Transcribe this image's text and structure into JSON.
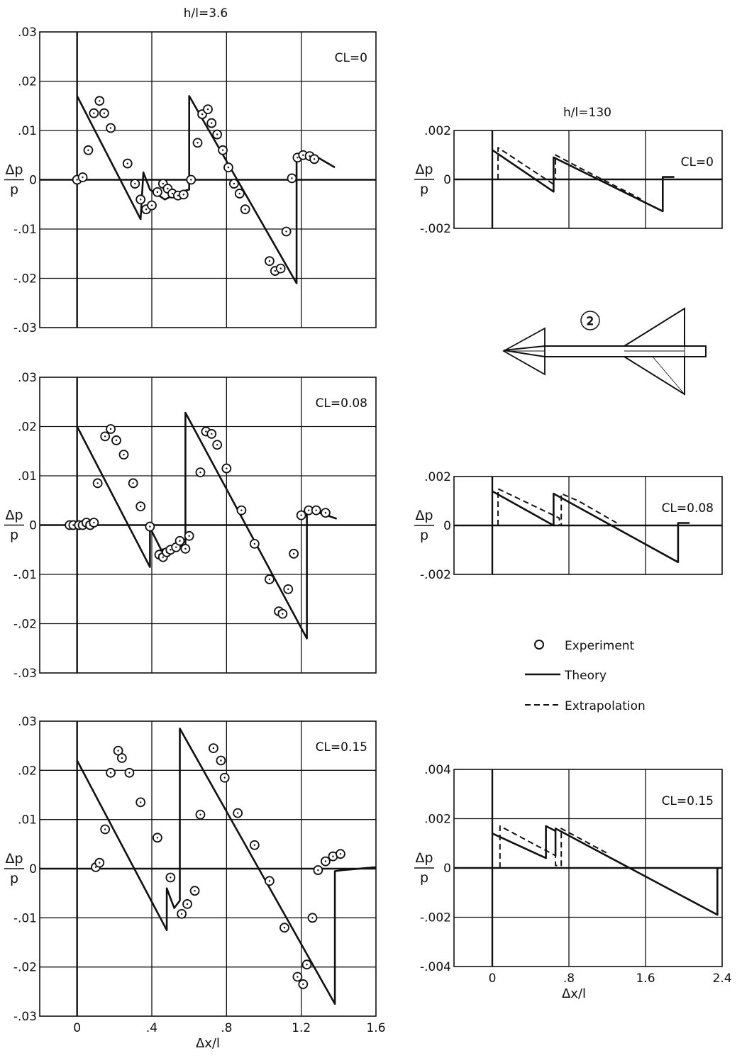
{
  "header_left": "h/l=3.6",
  "header_right": "h/l=130",
  "y_axis_label_top": "Δp",
  "y_axis_label_bottom": "p",
  "x_axis_label": "Δx/l",
  "legend": {
    "experiment": "Experiment",
    "theory": "Theory",
    "extrapolation": "Extrapolation"
  },
  "config_marker": "2",
  "colors": {
    "ink": "#111111",
    "background": "#ffffff"
  },
  "chart_data": [
    {
      "type": "line",
      "panel": "left-top",
      "label": "CL=0",
      "xlim": [
        -0.2,
        1.6
      ],
      "ylim": [
        -0.03,
        0.03
      ],
      "xticks": [
        0,
        0.4,
        0.8,
        1.2,
        1.6
      ],
      "xtick_labels": [],
      "yticks": [
        0.03,
        0.02,
        0.01,
        0,
        -0.01,
        -0.02,
        -0.03
      ],
      "ytick_labels": [
        ".03",
        ".02",
        ".01",
        "0",
        "-.01",
        "-.02",
        "-.03"
      ],
      "series": [
        {
          "kind": "theory",
          "points": [
            [
              0,
              0.017
            ],
            [
              0.34,
              -0.008
            ],
            [
              0.355,
              0.0015
            ],
            [
              0.39,
              -0.002
            ],
            [
              0.47,
              -0.004
            ],
            [
              0.55,
              -0.0025
            ],
            [
              0.6,
              -0.002
            ],
            [
              0.6,
              0.017
            ],
            [
              1.175,
              -0.021
            ],
            [
              1.175,
              0.0045
            ],
            [
              1.23,
              0.005
            ],
            [
              1.29,
              0.0045
            ],
            [
              1.38,
              0.0025
            ]
          ]
        },
        {
          "kind": "experiment",
          "points": [
            [
              0,
              0
            ],
            [
              0.03,
              0.0005
            ],
            [
              0.06,
              0.006
            ],
            [
              0.09,
              0.0135
            ],
            [
              0.12,
              0.016
            ],
            [
              0.145,
              0.0135
            ],
            [
              0.18,
              0.0105
            ],
            [
              0.27,
              0.0033
            ],
            [
              0.31,
              -0.0008
            ],
            [
              0.34,
              -0.004
            ],
            [
              0.37,
              -0.006
            ],
            [
              0.4,
              -0.0052
            ],
            [
              0.43,
              -0.0025
            ],
            [
              0.46,
              -0.0008
            ],
            [
              0.485,
              -0.0018
            ],
            [
              0.51,
              -0.0028
            ],
            [
              0.54,
              -0.0032
            ],
            [
              0.57,
              -0.003
            ],
            [
              0.61,
              0
            ],
            [
              0.645,
              0.0075
            ],
            [
              0.67,
              0.0133
            ],
            [
              0.7,
              0.0143
            ],
            [
              0.72,
              0.0115
            ],
            [
              0.75,
              0.0092
            ],
            [
              0.78,
              0.006
            ],
            [
              0.81,
              0.0025
            ],
            [
              0.84,
              -0.0008
            ],
            [
              0.87,
              -0.0028
            ],
            [
              0.9,
              -0.006
            ],
            [
              1.03,
              -0.0165
            ],
            [
              1.06,
              -0.0185
            ],
            [
              1.09,
              -0.018
            ],
            [
              1.12,
              -0.0105
            ],
            [
              1.15,
              0.0003
            ],
            [
              1.18,
              0.0045
            ],
            [
              1.21,
              0.005
            ],
            [
              1.245,
              0.0048
            ],
            [
              1.27,
              0.0042
            ]
          ]
        }
      ]
    },
    {
      "type": "line",
      "panel": "left-middle",
      "label": "CL=0.08",
      "xlim": [
        -0.2,
        1.6
      ],
      "ylim": [
        -0.03,
        0.03
      ],
      "xticks": [
        0,
        0.4,
        0.8,
        1.2,
        1.6
      ],
      "xtick_labels": [],
      "yticks": [
        0.03,
        0.02,
        0.01,
        0,
        -0.01,
        -0.02,
        -0.03
      ],
      "ytick_labels": [
        ".03",
        ".02",
        ".01",
        "0",
        "-.01",
        "-.02",
        "-.03"
      ],
      "series": [
        {
          "kind": "theory",
          "points": [
            [
              0,
              0.02
            ],
            [
              0.39,
              -0.0085
            ],
            [
              0.39,
              -0.0005
            ],
            [
              0.45,
              -0.005
            ],
            [
              0.52,
              -0.0045
            ],
            [
              0.58,
              -0.004
            ],
            [
              0.58,
              0.0228
            ],
            [
              1.23,
              -0.023
            ],
            [
              1.23,
              0.0027
            ],
            [
              1.27,
              0.0028
            ],
            [
              1.32,
              0.0022
            ],
            [
              1.39,
              0.0013
            ]
          ]
        },
        {
          "kind": "experiment",
          "points": [
            [
              -0.04,
              0
            ],
            [
              -0.02,
              0
            ],
            [
              0.01,
              0
            ],
            [
              0.03,
              0
            ],
            [
              0.05,
              0.0005
            ],
            [
              0.07,
              0
            ],
            [
              0.09,
              0.0005
            ],
            [
              0.11,
              0.0085
            ],
            [
              0.15,
              0.018
            ],
            [
              0.18,
              0.0195
            ],
            [
              0.21,
              0.0172
            ],
            [
              0.25,
              0.0143
            ],
            [
              0.3,
              0.0085
            ],
            [
              0.34,
              0.0038
            ],
            [
              0.39,
              -0.0003
            ],
            [
              0.44,
              -0.006
            ],
            [
              0.46,
              -0.0065
            ],
            [
              0.48,
              -0.0055
            ],
            [
              0.5,
              -0.005
            ],
            [
              0.53,
              -0.0045
            ],
            [
              0.55,
              -0.0032
            ],
            [
              0.58,
              -0.0048
            ],
            [
              0.6,
              -0.0022
            ],
            [
              0.66,
              0.0107
            ],
            [
              0.69,
              0.019
            ],
            [
              0.72,
              0.0185
            ],
            [
              0.75,
              0.0163
            ],
            [
              0.8,
              0.0115
            ],
            [
              0.88,
              0.003
            ],
            [
              0.95,
              -0.0038
            ],
            [
              1.03,
              -0.011
            ],
            [
              1.08,
              -0.0175
            ],
            [
              1.1,
              -0.018
            ],
            [
              1.13,
              -0.013
            ],
            [
              1.16,
              -0.0058
            ],
            [
              1.2,
              0.002
            ],
            [
              1.24,
              0.003
            ],
            [
              1.28,
              0.003
            ],
            [
              1.33,
              0.0025
            ]
          ]
        }
      ]
    },
    {
      "type": "line",
      "panel": "left-bottom",
      "label": "CL=0.15",
      "xlim": [
        -0.2,
        1.6
      ],
      "ylim": [
        -0.03,
        0.03
      ],
      "xticks": [
        0,
        0.4,
        0.8,
        1.2,
        1.6
      ],
      "xtick_labels": [
        "0",
        ".4",
        ".8",
        "1.2",
        "1.6"
      ],
      "yticks": [
        0.03,
        0.02,
        0.01,
        0,
        -0.01,
        -0.02,
        -0.03
      ],
      "ytick_labels": [
        ".03",
        ".02",
        ".01",
        "0",
        "-.01",
        "-.02",
        "-.03"
      ],
      "series": [
        {
          "kind": "theory",
          "points": [
            [
              0,
              0.022
            ],
            [
              0.48,
              -0.0125
            ],
            [
              0.48,
              -0.004
            ],
            [
              0.52,
              -0.008
            ],
            [
              0.55,
              -0.0065
            ],
            [
              0.55,
              0.0285
            ],
            [
              1.38,
              -0.0275
            ],
            [
              1.38,
              -0.0005
            ],
            [
              1.42,
              -0.0003
            ],
            [
              1.6,
              0.0003
            ]
          ]
        },
        {
          "kind": "experiment",
          "points": [
            [
              0.1,
              0.0003
            ],
            [
              0.12,
              0.0012
            ],
            [
              0.15,
              0.008
            ],
            [
              0.18,
              0.0195
            ],
            [
              0.22,
              0.024
            ],
            [
              0.24,
              0.0225
            ],
            [
              0.28,
              0.0195
            ],
            [
              0.34,
              0.0135
            ],
            [
              0.43,
              0.0063
            ],
            [
              0.5,
              -0.0018
            ],
            [
              0.56,
              -0.0092
            ],
            [
              0.59,
              -0.0072
            ],
            [
              0.63,
              -0.0045
            ],
            [
              0.66,
              0.011
            ],
            [
              0.73,
              0.0245
            ],
            [
              0.77,
              0.022
            ],
            [
              0.79,
              0.0185
            ],
            [
              0.86,
              0.0113
            ],
            [
              0.95,
              0.0048
            ],
            [
              1.03,
              -0.0025
            ],
            [
              1.11,
              -0.012
            ],
            [
              1.18,
              -0.022
            ],
            [
              1.21,
              -0.0235
            ],
            [
              1.23,
              -0.0195
            ],
            [
              1.26,
              -0.01
            ],
            [
              1.29,
              -0.0003
            ],
            [
              1.33,
              0.0015
            ],
            [
              1.37,
              0.0025
            ],
            [
              1.41,
              0.003
            ]
          ]
        }
      ]
    },
    {
      "type": "line",
      "panel": "right-top",
      "label": "CL=0",
      "xlim": [
        -0.4,
        2.4
      ],
      "ylim": [
        -0.002,
        0.002
      ],
      "xticks": [
        0,
        0.8,
        1.6,
        2.4
      ],
      "xtick_labels": [],
      "yticks": [
        0.002,
        0,
        -0.002
      ],
      "ytick_labels": [
        ".002",
        "0",
        "-.002"
      ],
      "series": [
        {
          "kind": "theory",
          "points": [
            [
              0,
              0.0012
            ],
            [
              0.64,
              -0.0005
            ],
            [
              0.64,
              0.0009
            ],
            [
              1.78,
              -0.0013
            ],
            [
              1.78,
              0.0001
            ],
            [
              1.9,
              0.0001
            ]
          ]
        },
        {
          "kind": "extrapolation",
          "points": [
            [
              0.06,
              0
            ],
            [
              0.06,
              0.0013
            ],
            [
              0.64,
              -0.0002
            ],
            [
              0.64,
              0
            ],
            [
              0.66,
              0
            ],
            [
              0.66,
              0.001
            ],
            [
              0.9,
              0.0005
            ],
            [
              1.55,
              -0.0008
            ]
          ]
        }
      ]
    },
    {
      "type": "line",
      "panel": "right-middle",
      "label": "CL=0.08",
      "xlim": [
        -0.4,
        2.4
      ],
      "ylim": [
        -0.002,
        0.002
      ],
      "xticks": [
        0,
        0.8,
        1.6,
        2.4
      ],
      "xtick_labels": [],
      "yticks": [
        0.002,
        0,
        -0.002
      ],
      "ytick_labels": [
        ".002",
        "0",
        "-.002"
      ],
      "series": [
        {
          "kind": "theory",
          "points": [
            [
              0,
              0.0014
            ],
            [
              0.64,
              0
            ],
            [
              0.64,
              0.0013
            ],
            [
              1.94,
              -0.0015
            ],
            [
              1.94,
              0.0001
            ],
            [
              2.06,
              0.0001
            ]
          ]
        },
        {
          "kind": "extrapolation",
          "points": [
            [
              0.06,
              0
            ],
            [
              0.06,
              0.0015
            ],
            [
              0.7,
              0.0003
            ],
            [
              0.7,
              0
            ],
            [
              0.72,
              0
            ],
            [
              0.72,
              0.0013
            ],
            [
              0.9,
              0.001
            ],
            [
              1.3,
              0.0001
            ]
          ]
        }
      ]
    },
    {
      "type": "line",
      "panel": "right-bottom",
      "label": "CL=0.15",
      "xlim": [
        -0.4,
        2.4
      ],
      "ylim": [
        -0.004,
        0.004
      ],
      "xticks": [
        0,
        0.8,
        1.6,
        2.4
      ],
      "xtick_labels": [
        "0",
        ".8",
        "1.6",
        "2.4"
      ],
      "yticks": [
        0.004,
        0.002,
        0,
        -0.002,
        -0.004
      ],
      "ytick_labels": [
        ".004",
        ".002",
        "0",
        "-.002",
        "-.004"
      ],
      "series": [
        {
          "kind": "theory",
          "points": [
            [
              0,
              0.0014
            ],
            [
              0.56,
              0.0004
            ],
            [
              0.56,
              0.0017
            ],
            [
              0.66,
              0.0015
            ],
            [
              0.66,
              0.0005
            ],
            [
              0.66,
              0.0016
            ],
            [
              2.35,
              -0.0019
            ],
            [
              2.35,
              0
            ]
          ]
        },
        {
          "kind": "extrapolation",
          "points": [
            [
              0.08,
              0
            ],
            [
              0.08,
              0.0017
            ],
            [
              0.66,
              0.0005
            ],
            [
              0.66,
              0.0001
            ],
            [
              0.72,
              0.0001
            ],
            [
              0.72,
              0.0016
            ],
            [
              1.2,
              0.0006
            ]
          ]
        }
      ]
    }
  ]
}
